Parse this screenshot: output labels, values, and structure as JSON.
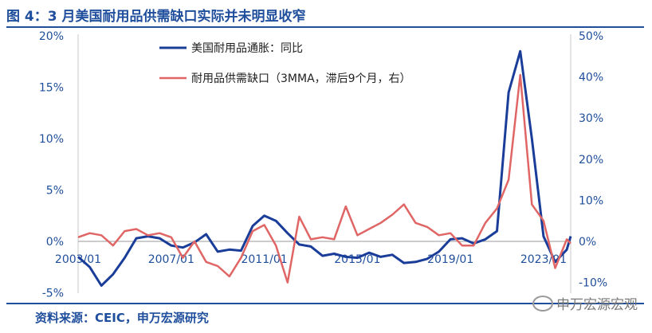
{
  "header": {
    "title": "图 4：3 月美国耐用品供需缺口实际并未明显收窄"
  },
  "footer": {
    "source": "资料来源：CEIC，申万宏源研究",
    "watermark": "申万宏源宏观"
  },
  "colors": {
    "series1": "#1a3d99",
    "series2": "#e06666",
    "accent": "#1f4e9c"
  },
  "chart_data": {
    "type": "line",
    "title": "",
    "x_ticks": [
      "2003/01",
      "2007/01",
      "2011/01",
      "2015/01",
      "2019/01",
      "2023/01"
    ],
    "left_axis": {
      "ticks": [
        "20%",
        "15%",
        "10%",
        "5%",
        "0%",
        "-5%"
      ],
      "ylim": [
        -5,
        20
      ]
    },
    "right_axis": {
      "ticks": [
        "50%",
        "40%",
        "30%",
        "20%",
        "10%",
        "0%",
        "-10%"
      ],
      "ylim": [
        -10,
        50
      ]
    },
    "series": [
      {
        "name": "美国耐用品通胀：同比",
        "axis": "left",
        "points": [
          [
            "2003/01",
            -1.5
          ],
          [
            "2003/07",
            -2.5
          ],
          [
            "2004/01",
            -4.3
          ],
          [
            "2004/07",
            -3.2
          ],
          [
            "2005/01",
            -1.6
          ],
          [
            "2005/07",
            0.3
          ],
          [
            "2006/01",
            0.5
          ],
          [
            "2006/07",
            0.3
          ],
          [
            "2007/01",
            -0.4
          ],
          [
            "2007/07",
            -0.6
          ],
          [
            "2008/01",
            -0.1
          ],
          [
            "2008/07",
            0.7
          ],
          [
            "2009/01",
            -1.0
          ],
          [
            "2009/07",
            -0.8
          ],
          [
            "2010/01",
            -0.9
          ],
          [
            "2010/07",
            1.5
          ],
          [
            "2011/01",
            2.5
          ],
          [
            "2011/07",
            2.0
          ],
          [
            "2012/01",
            0.8
          ],
          [
            "2012/07",
            -0.3
          ],
          [
            "2013/01",
            -0.5
          ],
          [
            "2013/07",
            -1.4
          ],
          [
            "2014/01",
            -1.2
          ],
          [
            "2014/07",
            -1.5
          ],
          [
            "2015/01",
            -1.6
          ],
          [
            "2015/07",
            -1.1
          ],
          [
            "2016/01",
            -1.5
          ],
          [
            "2016/07",
            -1.3
          ],
          [
            "2017/01",
            -2.1
          ],
          [
            "2017/07",
            -2.0
          ],
          [
            "2018/01",
            -1.7
          ],
          [
            "2018/07",
            -1.0
          ],
          [
            "2019/01",
            0.2
          ],
          [
            "2019/07",
            0.3
          ],
          [
            "2020/01",
            -0.2
          ],
          [
            "2020/07",
            0.2
          ],
          [
            "2021/01",
            1.0
          ],
          [
            "2021/07",
            14.5
          ],
          [
            "2022/01",
            18.5
          ],
          [
            "2022/07",
            10.0
          ],
          [
            "2023/01",
            0.5
          ],
          [
            "2023/07",
            -2.0
          ],
          [
            "2024/01",
            -0.8
          ],
          [
            "2024/03",
            0.5
          ]
        ]
      },
      {
        "name": "耐用品供需缺口（3MMA，滞后9个月，右）",
        "axis": "right",
        "points": [
          [
            "2003/01",
            1.0
          ],
          [
            "2003/07",
            2.0
          ],
          [
            "2004/01",
            1.5
          ],
          [
            "2004/07",
            -1.0
          ],
          [
            "2005/01",
            2.5
          ],
          [
            "2005/07",
            3.0
          ],
          [
            "2006/01",
            1.5
          ],
          [
            "2006/07",
            2.0
          ],
          [
            "2007/01",
            1.0
          ],
          [
            "2007/07",
            -4.0
          ],
          [
            "2008/01",
            0.0
          ],
          [
            "2008/07",
            -5.0
          ],
          [
            "2009/01",
            -6.0
          ],
          [
            "2009/07",
            -8.5
          ],
          [
            "2010/01",
            -4.0
          ],
          [
            "2010/07",
            2.5
          ],
          [
            "2011/01",
            4.0
          ],
          [
            "2011/07",
            -1.0
          ],
          [
            "2012/01",
            -10.0
          ],
          [
            "2012/07",
            6.0
          ],
          [
            "2013/01",
            0.5
          ],
          [
            "2013/07",
            1.0
          ],
          [
            "2014/01",
            0.5
          ],
          [
            "2014/07",
            8.5
          ],
          [
            "2015/01",
            1.5
          ],
          [
            "2015/07",
            3.0
          ],
          [
            "2016/01",
            4.5
          ],
          [
            "2016/07",
            6.5
          ],
          [
            "2017/01",
            9.0
          ],
          [
            "2017/07",
            4.5
          ],
          [
            "2018/01",
            3.5
          ],
          [
            "2018/07",
            1.5
          ],
          [
            "2019/01",
            2.0
          ],
          [
            "2019/07",
            -1.0
          ],
          [
            "2020/01",
            -1.0
          ],
          [
            "2020/07",
            4.5
          ],
          [
            "2021/01",
            8.0
          ],
          [
            "2021/07",
            15.0
          ],
          [
            "2022/01",
            40.5
          ],
          [
            "2022/07",
            9.0
          ],
          [
            "2023/01",
            5.0
          ],
          [
            "2023/07",
            -6.5
          ],
          [
            "2024/01",
            0.5
          ],
          [
            "2024/03",
            -0.5
          ]
        ]
      }
    ]
  }
}
